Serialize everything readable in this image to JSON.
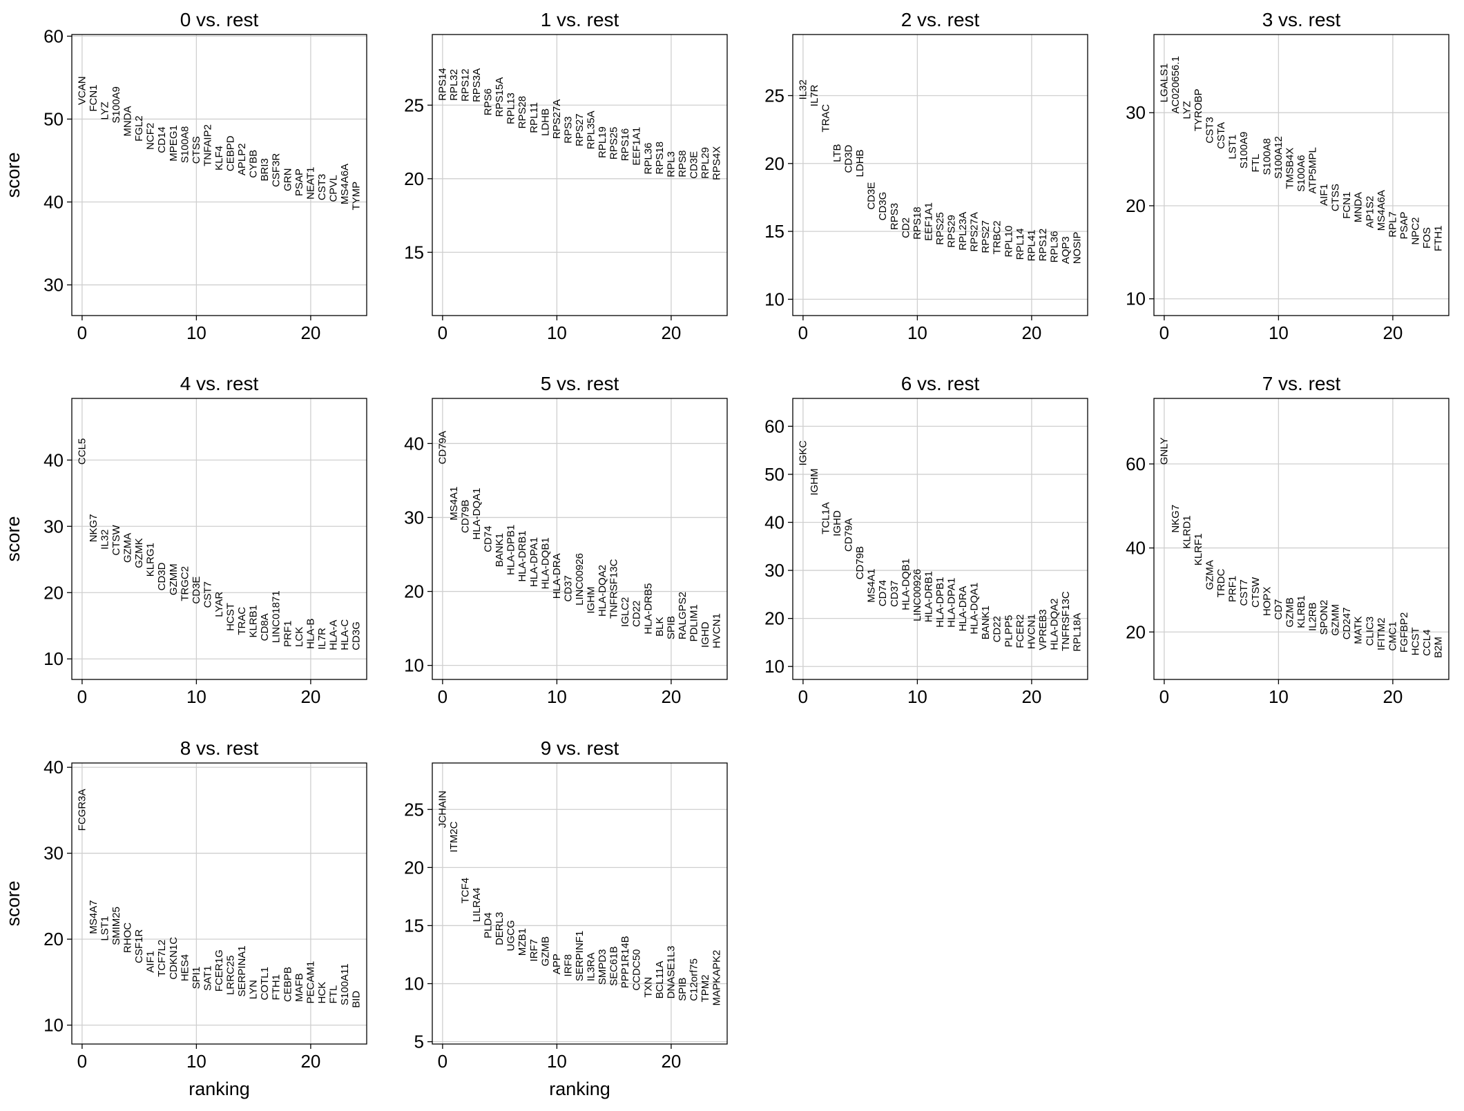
{
  "chart_data": [
    {
      "type": "scatter",
      "title": "0 vs. rest",
      "ylabel": "score",
      "x": [
        0,
        1,
        2,
        3,
        4,
        5,
        6,
        7,
        8,
        9,
        10,
        11,
        12,
        13,
        14,
        15,
        16,
        17,
        18,
        19,
        20,
        21,
        22,
        23,
        24
      ],
      "labels": [
        "VCAN",
        "FCN1",
        "LYZ",
        "S100A9",
        "MNDA",
        "FGL2",
        "NCF2",
        "CD14",
        "MPEG1",
        "S100A8",
        "CTSS",
        "TNFAIP2",
        "KLF4",
        "CEBPD",
        "APLP2",
        "CYBB",
        "BRI3",
        "CSF3R",
        "GRN",
        "PSAP",
        "NEAT1",
        "CST3",
        "CPVL",
        "MS4A6A",
        "TYMP"
      ],
      "values": [
        51.7,
        50.9,
        49.9,
        49.5,
        47.9,
        47.3,
        46.3,
        45.9,
        44.9,
        44.7,
        44.6,
        44.3,
        43.8,
        43.7,
        43.2,
        42.9,
        42.5,
        41.8,
        41.3,
        40.7,
        40.3,
        40.2,
        40.0,
        39.7,
        39.0
      ],
      "xlim": [
        -0.9,
        24.9
      ],
      "xticks": [
        0,
        10,
        20
      ],
      "ylim": [
        26.3,
        60.2
      ],
      "yticks": [
        30,
        40,
        50,
        60
      ],
      "grid": true
    },
    {
      "type": "scatter",
      "title": "1 vs. rest",
      "x": [
        0,
        1,
        2,
        3,
        4,
        5,
        6,
        7,
        8,
        9,
        10,
        11,
        12,
        13,
        14,
        15,
        16,
        17,
        18,
        19,
        20,
        21,
        22,
        23,
        24
      ],
      "labels": [
        "RPS14",
        "RPL32",
        "RPS12",
        "RPS3A",
        "RPS6",
        "RPS15A",
        "RPL13",
        "RPS28",
        "RPL11",
        "LDHB",
        "RPS27A",
        "RPS3",
        "RPS27",
        "RPL35A",
        "RPL19",
        "RPS25",
        "RPS16",
        "EEF1A1",
        "RPL36",
        "RPS18",
        "RPL3",
        "RPS8",
        "CD3E",
        "RPL29",
        "RPS4X"
      ],
      "values": [
        25.3,
        25.3,
        25.25,
        25.2,
        24.3,
        24.2,
        23.7,
        23.4,
        23.1,
        22.9,
        22.7,
        22.4,
        22.2,
        22.0,
        21.4,
        21.3,
        21.2,
        20.9,
        20.3,
        20.3,
        20.1,
        20.1,
        20.0,
        20.0,
        19.9
      ],
      "xlim": [
        -0.9,
        24.9
      ],
      "xticks": [
        0,
        10,
        20
      ],
      "ylim": [
        10.7,
        29.8
      ],
      "yticks": [
        15,
        20,
        25
      ],
      "grid": true
    },
    {
      "type": "scatter",
      "title": "2 vs. rest",
      "x": [
        0,
        1,
        2,
        3,
        4,
        5,
        6,
        7,
        8,
        9,
        10,
        11,
        12,
        13,
        14,
        15,
        16,
        17,
        18,
        19,
        20,
        21,
        22,
        23,
        24
      ],
      "labels": [
        "IL32",
        "IL7R",
        "TRAC",
        "LTB",
        "CD3D",
        "LDHB",
        "CD3E",
        "CD3G",
        "RPS3",
        "CD2",
        "RPS18",
        "EEF1A1",
        "RPS25",
        "RPS29",
        "RPL23A",
        "RPS27A",
        "RPS27",
        "TRBC2",
        "RPL10",
        "RPL14",
        "RPL41",
        "RPS12",
        "RPL36",
        "AQP3",
        "NOSIP"
      ],
      "values": [
        24.7,
        24.2,
        22.3,
        20.1,
        19.3,
        19.0,
        16.6,
        15.8,
        15.1,
        14.5,
        14.4,
        14.3,
        14.0,
        13.8,
        13.6,
        13.5,
        13.4,
        13.3,
        13.1,
        12.9,
        12.8,
        12.8,
        12.7,
        12.6,
        12.6
      ],
      "xlim": [
        -0.9,
        24.9
      ],
      "xticks": [
        0,
        10,
        20
      ],
      "ylim": [
        8.8,
        29.5
      ],
      "yticks": [
        10,
        15,
        20,
        25
      ],
      "grid": true
    },
    {
      "type": "scatter",
      "title": "3 vs. rest",
      "x": [
        0,
        1,
        2,
        3,
        4,
        5,
        6,
        7,
        8,
        9,
        10,
        11,
        12,
        13,
        14,
        15,
        16,
        17,
        18,
        19,
        20,
        21,
        22,
        23,
        24
      ],
      "labels": [
        "LGALS1",
        "AC020656.1",
        "LYZ",
        "TYROBP",
        "CST3",
        "CSTA",
        "LST1",
        "S100A9",
        "FTL",
        "S100A8",
        "S100A12",
        "TMSB4X",
        "S100A6",
        "ATP5MPL",
        "AIF1",
        "CTSS",
        "FCN1",
        "MNDA",
        "AP1S2",
        "MS4A6A",
        "RPL7",
        "PSAP",
        "NPC2",
        "FOS",
        "FTH1"
      ],
      "values": [
        31.1,
        29.9,
        29.3,
        28.0,
        26.7,
        26.1,
        25.0,
        24.0,
        23.6,
        23.3,
        22.9,
        21.8,
        21.5,
        21.3,
        20.0,
        19.4,
        18.6,
        18.2,
        17.6,
        17.3,
        16.6,
        16.4,
        15.8,
        15.4,
        15.1
      ],
      "xlim": [
        -0.9,
        24.9
      ],
      "xticks": [
        0,
        10,
        20
      ],
      "ylim": [
        8.2,
        38.4
      ],
      "yticks": [
        10,
        20,
        30
      ],
      "grid": true
    },
    {
      "type": "scatter",
      "title": "4 vs. rest",
      "ylabel": "score",
      "x": [
        0,
        1,
        2,
        3,
        4,
        5,
        6,
        7,
        8,
        9,
        10,
        11,
        12,
        13,
        14,
        15,
        16,
        17,
        18,
        19,
        20,
        21,
        22,
        23,
        24
      ],
      "labels": [
        "CCL5",
        "NKG7",
        "IL32",
        "CTSW",
        "GZMA",
        "GZMK",
        "KLRG1",
        "CD3D",
        "GZMM",
        "TRGC2",
        "CD3E",
        "CST7",
        "LYAR",
        "HCST",
        "TRAC",
        "KLRB1",
        "CD8A",
        "LINC01871",
        "PRF1",
        "LCK",
        "HLA-B",
        "IL7R",
        "HLA-A",
        "HLA-C",
        "CD3G"
      ],
      "values": [
        39.3,
        27.6,
        26.5,
        25.6,
        24.5,
        23.7,
        22.4,
        20.3,
        19.6,
        18.7,
        18.3,
        17.7,
        16.3,
        14.2,
        13.6,
        13.2,
        12.7,
        12.4,
        11.8,
        11.8,
        11.5,
        11.4,
        11.3,
        11.3,
        11.3
      ],
      "xlim": [
        -0.9,
        24.9
      ],
      "xticks": [
        0,
        10,
        20
      ],
      "ylim": [
        6.9,
        49.3
      ],
      "yticks": [
        10,
        20,
        30,
        40
      ],
      "grid": true
    },
    {
      "type": "scatter",
      "title": "5 vs. rest",
      "x": [
        0,
        1,
        2,
        3,
        4,
        5,
        6,
        7,
        8,
        9,
        10,
        11,
        12,
        13,
        14,
        15,
        16,
        17,
        18,
        19,
        20,
        21,
        22,
        23,
        24
      ],
      "labels": [
        "CD79A",
        "MS4A1",
        "CD79B",
        "HLA-DQA1",
        "CD74",
        "BANK1",
        "HLA-DPB1",
        "HLA-DRB1",
        "HLA-DPA1",
        "HLA-DQB1",
        "HLA-DRA",
        "CD37",
        "LINC00926",
        "IGHM",
        "HLA-DQA2",
        "TNFRSF13C",
        "IGLC2",
        "CD22",
        "HLA-DRB5",
        "BLK",
        "SPIB",
        "RALGPS2",
        "PDLIM1",
        "IGHD",
        "HVCN1"
      ],
      "values": [
        37.2,
        29.6,
        27.9,
        27.0,
        25.3,
        23.3,
        22.2,
        21.3,
        20.6,
        20.3,
        19.0,
        18.6,
        18.1,
        17.0,
        16.6,
        16.3,
        15.2,
        15.2,
        14.2,
        13.9,
        13.5,
        13.5,
        13.2,
        12.4,
        12.3
      ],
      "xlim": [
        -0.9,
        24.9
      ],
      "xticks": [
        0,
        10,
        20
      ],
      "ylim": [
        8.1,
        46.1
      ],
      "yticks": [
        10,
        20,
        30,
        40
      ],
      "grid": true
    },
    {
      "type": "scatter",
      "title": "6 vs. rest",
      "x": [
        0,
        1,
        2,
        3,
        4,
        5,
        6,
        7,
        8,
        9,
        10,
        11,
        12,
        13,
        14,
        15,
        16,
        17,
        18,
        19,
        20,
        21,
        22,
        23,
        24
      ],
      "labels": [
        "IGKC",
        "IGHM",
        "TCL1A",
        "IGHD",
        "CD79A",
        "CD79B",
        "MS4A1",
        "CD74",
        "CD37",
        "HLA-DQB1",
        "LINC00926",
        "HLA-DRB1",
        "HLA-DPB1",
        "HLA-DPA1",
        "HLA-DRA",
        "HLA-DQA1",
        "BANK1",
        "CD22",
        "PLPP5",
        "FCER2",
        "HVCN1",
        "VPREB3",
        "HLA-DQA2",
        "TNFRSF13C",
        "RPL18A"
      ],
      "values": [
        51.8,
        45.6,
        37.5,
        37.1,
        33.9,
        28.1,
        23.3,
        22.5,
        22.4,
        21.7,
        19.4,
        19.2,
        18.1,
        18.1,
        17.3,
        16.7,
        15.6,
        15.0,
        14.0,
        13.8,
        13.6,
        13.4,
        13.4,
        13.2,
        13.1
      ],
      "xlim": [
        -0.9,
        24.9
      ],
      "xticks": [
        0,
        10,
        20
      ],
      "ylim": [
        7.3,
        65.8
      ],
      "yticks": [
        10,
        20,
        30,
        40,
        50,
        60
      ],
      "grid": true
    },
    {
      "type": "scatter",
      "title": "7 vs. rest",
      "x": [
        0,
        1,
        2,
        3,
        4,
        5,
        6,
        7,
        8,
        9,
        10,
        11,
        12,
        13,
        14,
        15,
        16,
        17,
        18,
        19,
        20,
        21,
        22,
        23,
        24
      ],
      "labels": [
        "GNLY",
        "NKG7",
        "KLRD1",
        "KLRF1",
        "GZMA",
        "TRDC",
        "PRF1",
        "CST7",
        "CTSW",
        "HOPX",
        "CD7",
        "GZMB",
        "KLRB1",
        "IL2RB",
        "SPON2",
        "GZMM",
        "CD247",
        "MATK",
        "CLIC3",
        "IFITM2",
        "CMC1",
        "FGFBP2",
        "HCST",
        "CCL4",
        "B2M"
      ],
      "values": [
        59.8,
        43.6,
        39.8,
        35.8,
        30.0,
        28.2,
        27.1,
        26.2,
        25.8,
        23.8,
        22.9,
        21.1,
        20.9,
        20.2,
        19.3,
        19.1,
        18.2,
        17.1,
        16.7,
        15.6,
        15.5,
        15.1,
        14.4,
        14.3,
        13.8
      ],
      "xlim": [
        -0.9,
        24.9
      ],
      "xticks": [
        0,
        10,
        20
      ],
      "ylim": [
        8.7,
        75.6
      ],
      "yticks": [
        20,
        40,
        60
      ],
      "grid": true
    },
    {
      "type": "scatter",
      "title": "8 vs. rest",
      "ylabel": "score",
      "xlabel": "ranking",
      "x": [
        0,
        1,
        2,
        3,
        4,
        5,
        6,
        7,
        8,
        9,
        10,
        11,
        12,
        13,
        14,
        15,
        16,
        17,
        18,
        19,
        20,
        21,
        22,
        23,
        24
      ],
      "labels": [
        "FCGR3A",
        "MS4A7",
        "LST1",
        "SMIM25",
        "RHOC",
        "CSF1R",
        "AIF1",
        "TCF7L2",
        "CDKN1C",
        "HES4",
        "SPI1",
        "SAT1",
        "FCER1G",
        "LRRC25",
        "SERPINA1",
        "LYN",
        "COTL1",
        "FTH1",
        "CEBPB",
        "MAFB",
        "PECAM1",
        "HCK",
        "FTL",
        "S100A11",
        "BID"
      ],
      "values": [
        32.6,
        20.6,
        19.8,
        19.3,
        18.4,
        17.2,
        16.1,
        15.6,
        15.3,
        15.1,
        14.2,
        14.0,
        13.9,
        13.5,
        13.3,
        13.0,
        12.9,
        12.9,
        12.7,
        12.7,
        12.5,
        12.5,
        12.5,
        12.3,
        12.0
      ],
      "xlim": [
        -0.9,
        24.9
      ],
      "xticks": [
        0,
        10,
        20
      ],
      "ylim": [
        7.8,
        40.5
      ],
      "yticks": [
        10,
        20,
        30,
        40
      ],
      "grid": true
    },
    {
      "type": "scatter",
      "title": "9 vs. rest",
      "xlabel": "ranking",
      "x": [
        0,
        1,
        2,
        3,
        4,
        5,
        6,
        7,
        8,
        9,
        10,
        11,
        12,
        13,
        14,
        15,
        16,
        17,
        18,
        19,
        20,
        21,
        22,
        23,
        24
      ],
      "labels": [
        "JCHAIN",
        "ITM2C",
        "TCF4",
        "LILRA4",
        "PLD4",
        "DERL3",
        "UGCG",
        "MZB1",
        "IRF7",
        "GZMB",
        "APP",
        "IRF8",
        "SERPINF1",
        "IL3RA",
        "SMPD3",
        "SEC61B",
        "PPP1R14B",
        "CCDC50",
        "TXN",
        "BCL11A",
        "DNASE1L3",
        "SPIB",
        "C12orf75",
        "TPM2",
        "MAPKAPK2"
      ],
      "values": [
        23.4,
        21.3,
        16.9,
        15.3,
        13.9,
        13.3,
        12.8,
        12.4,
        11.9,
        11.5,
        10.8,
        10.6,
        10.2,
        10.2,
        9.9,
        9.8,
        9.6,
        9.4,
        8.8,
        8.7,
        8.7,
        8.5,
        8.5,
        8.4,
        8.1
      ],
      "xlim": [
        -0.9,
        24.9
      ],
      "xticks": [
        0,
        10,
        20
      ],
      "ylim": [
        4.8,
        29.0
      ],
      "yticks": [
        5,
        10,
        15,
        20,
        25
      ],
      "grid": true
    }
  ]
}
